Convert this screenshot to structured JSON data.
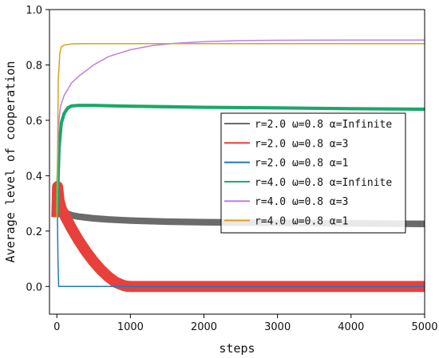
{
  "chart_data": {
    "type": "line",
    "xlabel": "steps",
    "ylabel": "Average level of cooperation",
    "xlim": [
      -100,
      5000
    ],
    "ylim": [
      -0.1,
      1.0
    ],
    "xticks": [
      0,
      1000,
      2000,
      3000,
      4000,
      5000
    ],
    "xtick_labels": [
      "0",
      "1000",
      "2000",
      "3000",
      "4000",
      "5000"
    ],
    "yticks": [
      0.0,
      0.2,
      0.4,
      0.6,
      0.8,
      1.0
    ],
    "ytick_labels": [
      "0.0",
      "0.2",
      "0.4",
      "0.6",
      "0.8",
      "1.0"
    ],
    "grid": false,
    "legend_position": "center-right",
    "series": [
      {
        "name": "r=2.0  ω=0.8  α=Infinite",
        "color": "#6b6b6b",
        "band": 0.012,
        "x": [
          0,
          10,
          30,
          60,
          100,
          150,
          200,
          300,
          400,
          500,
          700,
          1000,
          1500,
          2000,
          3000,
          4000,
          5000
        ],
        "y": [
          0.25,
          0.37,
          0.31,
          0.285,
          0.27,
          0.262,
          0.257,
          0.252,
          0.249,
          0.246,
          0.242,
          0.238,
          0.234,
          0.232,
          0.23,
          0.228,
          0.226
        ]
      },
      {
        "name": "r=2.0  ω=0.8  α=3",
        "color": "#e8403a",
        "band": 0.02,
        "x": [
          0,
          10,
          30,
          60,
          100,
          200,
          300,
          400,
          500,
          600,
          700,
          800,
          900,
          950,
          1000,
          2000,
          3000,
          4000,
          5000
        ],
        "y": [
          0.25,
          0.36,
          0.31,
          0.28,
          0.26,
          0.21,
          0.165,
          0.125,
          0.09,
          0.06,
          0.035,
          0.015,
          0.004,
          0.001,
          0.0,
          0.0,
          0.0,
          0.0,
          0.0
        ]
      },
      {
        "name": "r=2.0  ω=0.8  α=1",
        "color": "#1f77c8",
        "x": [
          0,
          5,
          15,
          25,
          5000
        ],
        "y": [
          0.25,
          0.32,
          0.1,
          0.0,
          0.0
        ]
      },
      {
        "name": "r=4.0  ω=0.8  α=Infinite",
        "color": "#1aa86a",
        "band": 0.006,
        "x": [
          0,
          30,
          60,
          100,
          150,
          200,
          300,
          500,
          800,
          1000,
          1500,
          2000,
          3000,
          4000,
          5000
        ],
        "y": [
          0.25,
          0.5,
          0.59,
          0.625,
          0.645,
          0.652,
          0.654,
          0.654,
          0.652,
          0.651,
          0.649,
          0.647,
          0.645,
          0.642,
          0.64
        ]
      },
      {
        "name": "r=4.0  ω=0.8  α=3",
        "color": "#c07fe0",
        "x": [
          0,
          20,
          50,
          100,
          200,
          300,
          500,
          700,
          1000,
          1300,
          1600,
          2000,
          2500,
          3000,
          4000,
          5000
        ],
        "y": [
          0.25,
          0.58,
          0.65,
          0.69,
          0.735,
          0.76,
          0.8,
          0.83,
          0.855,
          0.87,
          0.878,
          0.884,
          0.888,
          0.889,
          0.89,
          0.89
        ]
      },
      {
        "name": "r=4.0  ω=0.8  α=1",
        "color": "#d9a21e",
        "x": [
          0,
          20,
          40,
          60,
          100,
          200,
          400,
          1000,
          5000
        ],
        "y": [
          0.25,
          0.75,
          0.84,
          0.865,
          0.872,
          0.876,
          0.877,
          0.877,
          0.877
        ]
      }
    ]
  }
}
